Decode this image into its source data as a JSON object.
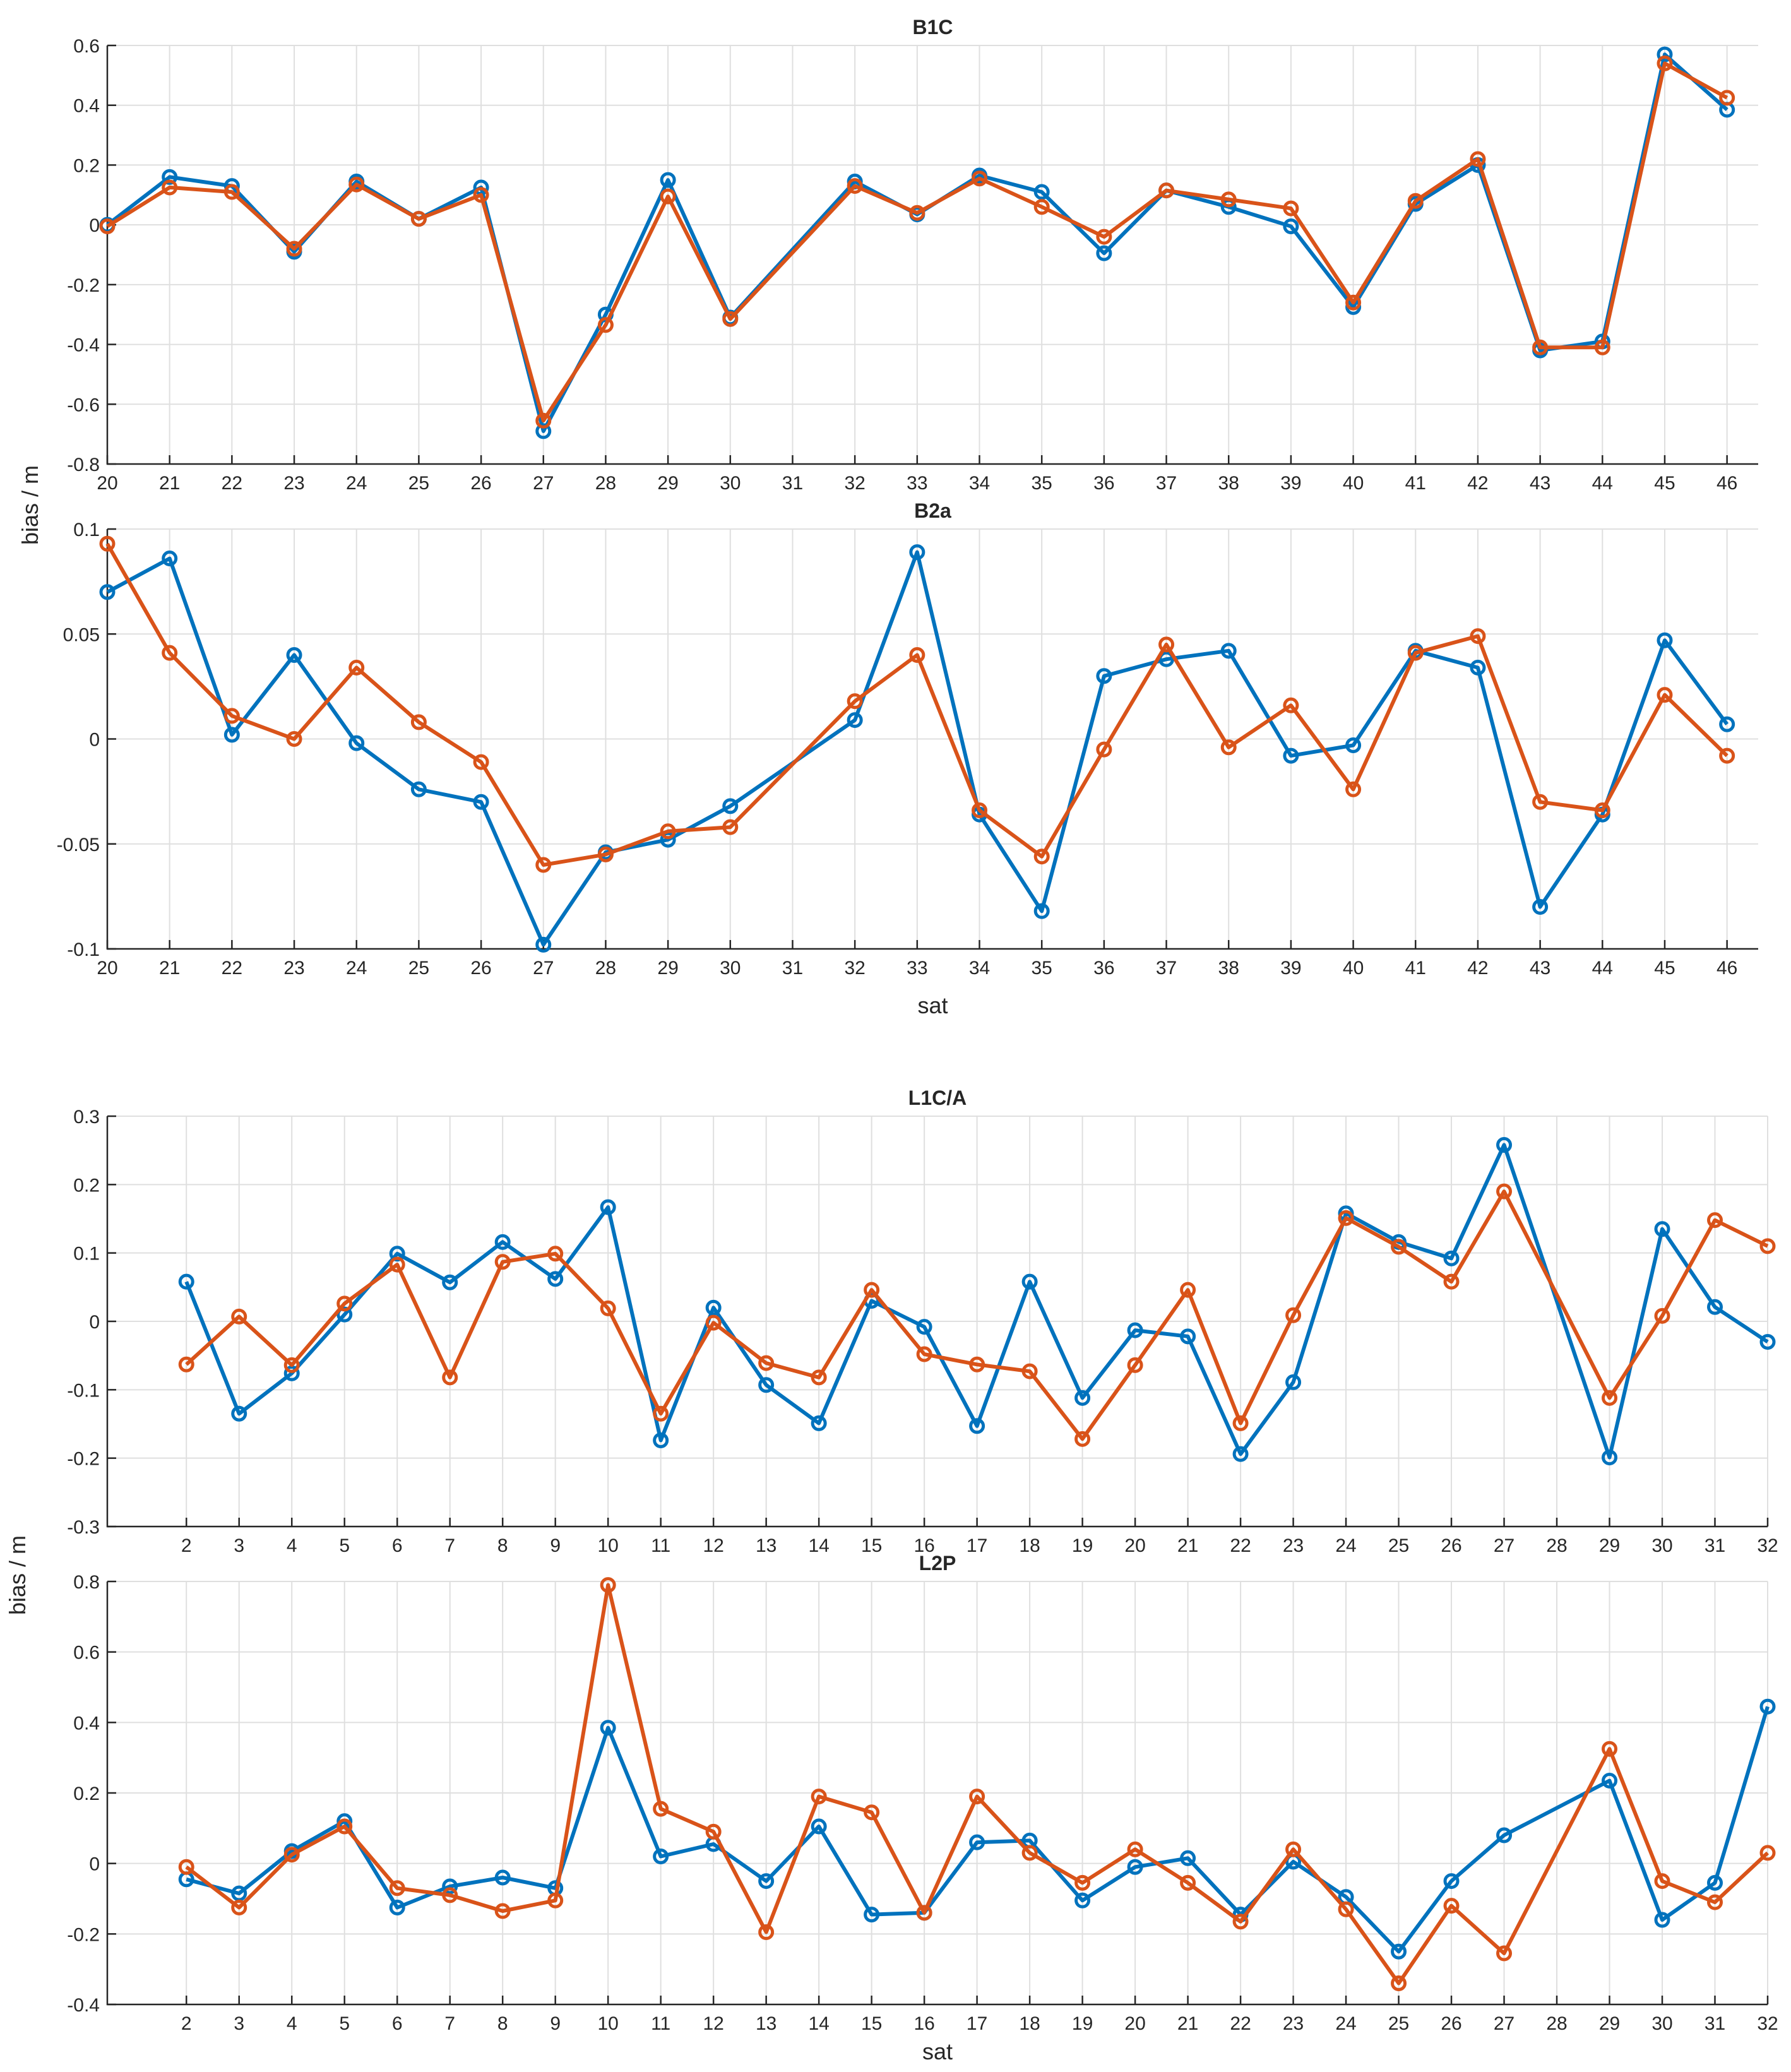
{
  "chart_data": [
    {
      "type": "line",
      "title": "B1C",
      "xlabel": "",
      "ylabel": "bias / m",
      "ylim": [
        -0.8,
        0.6
      ],
      "yticks": [
        -0.8,
        -0.6,
        -0.4,
        -0.2,
        0,
        0.2,
        0.4,
        0.6
      ],
      "ytick_labels": [
        "-0.8",
        "-0.6",
        "-0.4",
        "-0.2",
        "0",
        "0.2",
        "0.4",
        "0.6"
      ],
      "xlim": [
        20,
        46.5
      ],
      "xticks": [
        20,
        21,
        22,
        23,
        24,
        25,
        26,
        27,
        28,
        29,
        30,
        31,
        32,
        33,
        34,
        35,
        36,
        37,
        38,
        39,
        40,
        41,
        42,
        43,
        44,
        45,
        46
      ],
      "x": [
        20,
        21,
        22,
        23,
        24,
        25,
        26,
        27,
        28,
        29,
        30,
        32,
        33,
        34,
        35,
        36,
        37,
        38,
        39,
        40,
        41,
        42,
        43,
        44,
        45,
        46
      ],
      "series": [
        {
          "name": "series-1",
          "color": "#0072BD",
          "values": [
            0.0,
            0.16,
            0.13,
            -0.09,
            0.145,
            0.02,
            0.125,
            -0.69,
            -0.3,
            0.15,
            -0.31,
            0.145,
            0.035,
            0.165,
            0.11,
            -0.095,
            0.115,
            0.06,
            -0.005,
            -0.275,
            0.07,
            0.2,
            -0.42,
            -0.39,
            0.57,
            0.385
          ]
        },
        {
          "name": "series-2",
          "color": "#D95319",
          "values": [
            -0.005,
            0.125,
            0.11,
            -0.08,
            0.135,
            0.02,
            0.1,
            -0.655,
            -0.335,
            0.095,
            -0.315,
            0.13,
            0.04,
            0.155,
            0.06,
            -0.04,
            0.115,
            0.085,
            0.055,
            -0.26,
            0.08,
            0.22,
            -0.41,
            -0.41,
            0.54,
            0.425
          ]
        }
      ]
    },
    {
      "type": "line",
      "title": "B2a",
      "xlabel": "sat",
      "ylabel": "",
      "ylim": [
        -0.1,
        0.1
      ],
      "yticks": [
        -0.1,
        -0.05,
        0,
        0.05,
        0.1
      ],
      "ytick_labels": [
        "-0.1",
        "-0.05",
        "0",
        "0.05",
        "0.1"
      ],
      "xlim": [
        20,
        46.5
      ],
      "xticks": [
        20,
        21,
        22,
        23,
        24,
        25,
        26,
        27,
        28,
        29,
        30,
        31,
        32,
        33,
        34,
        35,
        36,
        37,
        38,
        39,
        40,
        41,
        42,
        43,
        44,
        45,
        46
      ],
      "x": [
        20,
        21,
        22,
        23,
        24,
        25,
        26,
        27,
        28,
        29,
        30,
        32,
        33,
        34,
        35,
        36,
        37,
        38,
        39,
        40,
        41,
        42,
        43,
        44,
        45,
        46
      ],
      "series": [
        {
          "name": "series-1",
          "color": "#0072BD",
          "values": [
            0.07,
            0.086,
            0.002,
            0.04,
            -0.002,
            -0.024,
            -0.03,
            -0.098,
            -0.054,
            -0.048,
            -0.032,
            0.009,
            0.089,
            -0.036,
            -0.082,
            0.03,
            0.038,
            0.042,
            -0.008,
            -0.003,
            0.042,
            0.034,
            -0.08,
            -0.036,
            0.047,
            0.007
          ]
        },
        {
          "name": "series-2",
          "color": "#D95319",
          "values": [
            0.093,
            0.041,
            0.011,
            0.0,
            0.034,
            0.008,
            -0.011,
            -0.06,
            -0.055,
            -0.044,
            -0.042,
            0.018,
            0.04,
            -0.034,
            -0.056,
            -0.005,
            0.045,
            -0.004,
            0.016,
            -0.024,
            0.041,
            0.049,
            -0.03,
            -0.034,
            0.021,
            -0.008
          ]
        }
      ]
    },
    {
      "type": "line",
      "title": "L1C/A",
      "xlabel": "",
      "ylabel": "bias / m",
      "ylim": [
        -0.3,
        0.3
      ],
      "yticks": [
        -0.3,
        -0.2,
        -0.1,
        0,
        0.1,
        0.2,
        0.3
      ],
      "ytick_labels": [
        "-0.3",
        "-0.2",
        "-0.1",
        "0",
        "0.1",
        "0.2",
        "0.3"
      ],
      "xlim": [
        0.5,
        32
      ],
      "xticks": [
        2,
        3,
        4,
        5,
        6,
        7,
        8,
        9,
        10,
        11,
        12,
        13,
        14,
        15,
        16,
        17,
        18,
        19,
        20,
        21,
        22,
        23,
        24,
        25,
        26,
        27,
        28,
        29,
        30,
        31,
        32
      ],
      "x": [
        2,
        3,
        4,
        5,
        6,
        7,
        8,
        9,
        10,
        11,
        12,
        13,
        14,
        15,
        16,
        17,
        18,
        19,
        20,
        21,
        22,
        23,
        24,
        25,
        26,
        27,
        29,
        30,
        31,
        32
      ],
      "series": [
        {
          "name": "series-1",
          "color": "#0072BD",
          "values": [
            0.058,
            -0.135,
            -0.076,
            0.01,
            0.099,
            0.057,
            0.116,
            0.062,
            0.167,
            -0.174,
            0.02,
            -0.093,
            -0.149,
            0.03,
            -0.008,
            -0.153,
            0.058,
            -0.112,
            -0.013,
            -0.022,
            -0.194,
            -0.089,
            0.158,
            0.116,
            0.092,
            0.258,
            -0.199,
            0.135,
            0.021,
            -0.03
          ]
        },
        {
          "name": "series-2",
          "color": "#D95319",
          "values": [
            -0.063,
            0.007,
            -0.064,
            0.026,
            0.083,
            -0.082,
            0.087,
            0.099,
            0.019,
            -0.135,
            -0.002,
            -0.061,
            -0.082,
            0.046,
            -0.048,
            -0.063,
            -0.073,
            -0.172,
            -0.064,
            0.046,
            -0.149,
            0.009,
            0.151,
            0.109,
            0.058,
            0.19,
            -0.112,
            0.008,
            0.148,
            0.11
          ]
        }
      ]
    },
    {
      "type": "line",
      "title": "L2P",
      "xlabel": "sat",
      "ylabel": "",
      "ylim": [
        -0.4,
        0.8
      ],
      "yticks": [
        -0.4,
        -0.2,
        0,
        0.2,
        0.4,
        0.6,
        0.8
      ],
      "ytick_labels": [
        "-0.4",
        "-0.2",
        "0",
        "0.2",
        "0.4",
        "0.6",
        "0.8"
      ],
      "xlim": [
        0.5,
        32
      ],
      "xticks": [
        2,
        3,
        4,
        5,
        6,
        7,
        8,
        9,
        10,
        11,
        12,
        13,
        14,
        15,
        16,
        17,
        18,
        19,
        20,
        21,
        22,
        23,
        24,
        25,
        26,
        27,
        28,
        29,
        30,
        31,
        32
      ],
      "x": [
        2,
        3,
        4,
        5,
        6,
        7,
        8,
        9,
        10,
        11,
        12,
        13,
        14,
        15,
        16,
        17,
        18,
        19,
        20,
        21,
        22,
        23,
        24,
        25,
        26,
        27,
        29,
        30,
        31,
        32
      ],
      "series": [
        {
          "name": "series-1",
          "color": "#0072BD",
          "values": [
            -0.045,
            -0.085,
            0.035,
            0.12,
            -0.125,
            -0.065,
            -0.04,
            -0.07,
            0.385,
            0.02,
            0.055,
            -0.05,
            0.105,
            -0.145,
            -0.14,
            0.06,
            0.065,
            -0.105,
            -0.01,
            0.015,
            -0.145,
            0.005,
            -0.095,
            -0.25,
            -0.05,
            0.08,
            0.235,
            -0.16,
            -0.055,
            0.445
          ]
        },
        {
          "name": "series-2",
          "color": "#D95319",
          "values": [
            -0.01,
            -0.125,
            0.025,
            0.105,
            -0.07,
            -0.09,
            -0.135,
            -0.105,
            0.79,
            0.155,
            0.09,
            -0.195,
            0.19,
            0.145,
            -0.14,
            0.19,
            0.03,
            -0.055,
            0.04,
            -0.055,
            -0.165,
            0.04,
            -0.13,
            -0.34,
            -0.12,
            -0.255,
            0.325,
            -0.05,
            -0.11,
            0.03
          ]
        }
      ]
    }
  ]
}
